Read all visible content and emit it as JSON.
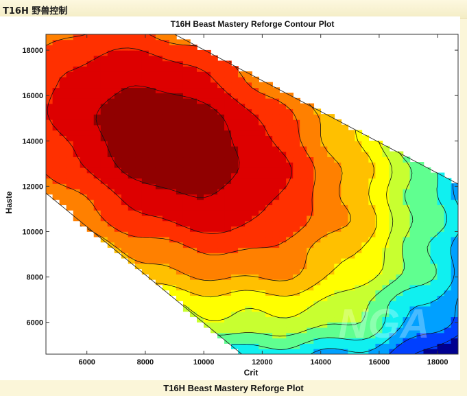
{
  "header": {
    "title": "T16H 野兽控制"
  },
  "caption": "T16H Beast Mastery Reforge Plot",
  "watermark": "NGA",
  "chart_data": {
    "type": "heatmap",
    "title": "T16H Beast Mastery Reforge Contour Plot",
    "xlabel": "Crit",
    "ylabel": "Haste",
    "xlim": [
      4600,
      18700
    ],
    "ylim": [
      4600,
      18700
    ],
    "x_ticks": [
      6000,
      8000,
      10000,
      12000,
      14000,
      16000,
      18000
    ],
    "y_ticks": [
      6000,
      8000,
      10000,
      12000,
      14000,
      16000,
      18000
    ],
    "colormap": "jet",
    "contour_lines": true,
    "feasible_region_corners": [
      [
        4600,
        18700
      ],
      [
        9000,
        18700
      ],
      [
        18700,
        12100
      ],
      [
        18700,
        4600
      ],
      [
        11300,
        4600
      ],
      [
        4600,
        11700
      ]
    ],
    "optimum_region": {
      "crit": 8800,
      "haste": 14000
    },
    "colors": [
      "#000090",
      "#0040ff",
      "#00a0ff",
      "#10f0f0",
      "#60ff90",
      "#c8ff30",
      "#ffff00",
      "#ffc000",
      "#ff8000",
      "#ff3000",
      "#dd0000",
      "#900000"
    ]
  }
}
